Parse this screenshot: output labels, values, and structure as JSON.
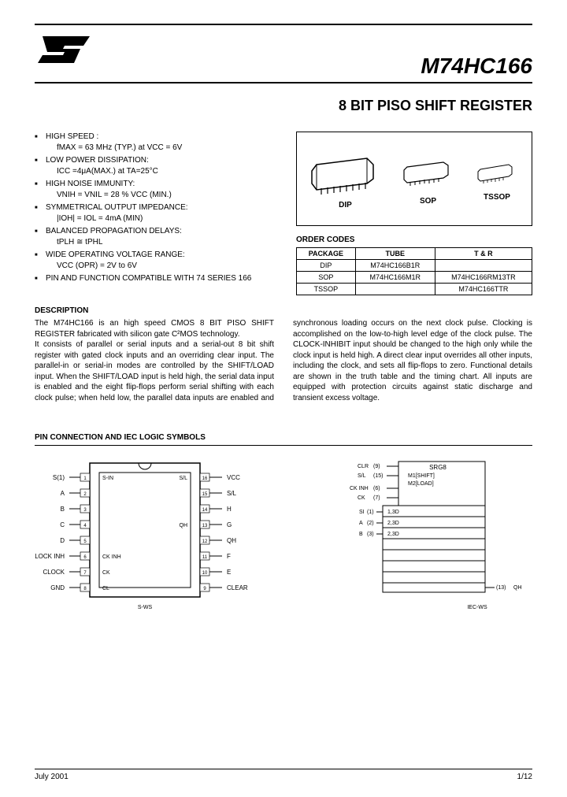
{
  "header": {
    "logo_text": "ST",
    "part_number": "M74HC166"
  },
  "title": "8 BIT PISO SHIFT REGISTER",
  "features": [
    {
      "label": "HIGH SPEED :",
      "sub": "fMAX = 63 MHz  (TYP.) at VCC = 6V"
    },
    {
      "label": "LOW POWER DISSIPATION:",
      "sub": "ICC =4μA(MAX.) at TA=25°C"
    },
    {
      "label": "HIGH NOISE IMMUNITY:",
      "sub": "VNIH = VNIL = 28 % VCC (MIN.)"
    },
    {
      "label": "SYMMETRICAL OUTPUT IMPEDANCE:",
      "sub": "|IOH| = IOL = 4mA (MIN)"
    },
    {
      "label": "BALANCED PROPAGATION DELAYS:",
      "sub": "tPLH ≅ tPHL"
    },
    {
      "label": "WIDE OPERATING VOLTAGE RANGE:",
      "sub": "VCC (OPR) = 2V to 6V"
    },
    {
      "label": "PIN AND FUNCTION COMPATIBLE WITH 74 SERIES 166",
      "sub": ""
    }
  ],
  "packages": {
    "items": [
      {
        "name": "DIP"
      },
      {
        "name": "SOP"
      },
      {
        "name": "TSSOP"
      }
    ]
  },
  "order_codes": {
    "heading": "ORDER CODES",
    "columns": [
      "PACKAGE",
      "TUBE",
      "T & R"
    ],
    "rows": [
      [
        "DIP",
        "M74HC166B1R",
        ""
      ],
      [
        "SOP",
        "M74HC166M1R",
        "M74HC166RM13TR"
      ],
      [
        "TSSOP",
        "",
        "M74HC166TTR"
      ]
    ]
  },
  "description": {
    "heading": "DESCRIPTION",
    "para1": "The M74HC166 is an high speed CMOS 8 BIT PISO SHIFT REGISTER fabricated with silicon gate  C²MOS technology.",
    "para2": "It consists of parallel or serial inputs and a serial-out 8 bit shift register with gated clock inputs and an overriding clear input. The parallel-in or serial-in modes are controlled by the  SHIFT/LOAD input. When the SHIFT/LOAD input is held high, the serial data input is enabled and the eight flip-flops perform serial shifting with each clock pulse;  when held low, the parallel data inputs are enabled and synchronous loading occurs on the next clock pulse. Clocking is accomplished on the low-to-high level edge  of the clock pulse. The CLOCK-INHIBIT input should be changed to the high only while the clock input is held high. A direct clear input overrides all other inputs, including the clock, and sets all flip-flops to zero. Functional details are shown in the truth table and the timing chart. All inputs are equipped with protection circuits against static discharge and transient excess voltage."
  },
  "pin_section": {
    "heading": "PIN CONNECTION AND IEC LOGIC SYMBOLS",
    "left_pins": {
      "left_labels": [
        "S(1)",
        "A",
        "B",
        "C",
        "D",
        "CLOCK INH",
        "CLOCK",
        "GND"
      ],
      "right_labels": [
        "VCC",
        "S/L",
        "H",
        "G",
        "QH",
        "F",
        "E",
        "CLEAR"
      ],
      "inside_left": [
        "S-IN",
        "",
        "",
        "",
        "",
        "CK INH",
        "CK",
        "CL"
      ],
      "inside_right": [
        "S/L",
        "",
        "",
        "QH",
        "",
        "",
        ""
      ],
      "footer": "S-WS"
    },
    "right_sym": {
      "top_labels": [
        "CLR",
        "S/L",
        "CK INH",
        "CK"
      ],
      "top_vals": [
        "(9)",
        "(15)",
        "(6)",
        "(7)"
      ],
      "srg": "SRG8",
      "m1": "M1[SHIFT]",
      "m2": "M2[LOAD]",
      "mid_labels": [
        "SI",
        "A",
        "B"
      ],
      "mid_vals": [
        "(1)",
        "(2)",
        "(3)"
      ],
      "mid_codes": [
        "1,3D",
        "2,3D",
        "2,3D"
      ],
      "out_label": "QH",
      "out_val": "(13)",
      "footer": "IEC-WS"
    }
  },
  "footer": {
    "date": "July 2001",
    "page": "1/12"
  },
  "colors": {
    "text": "#000000",
    "bg": "#ffffff",
    "rule": "#000000"
  }
}
